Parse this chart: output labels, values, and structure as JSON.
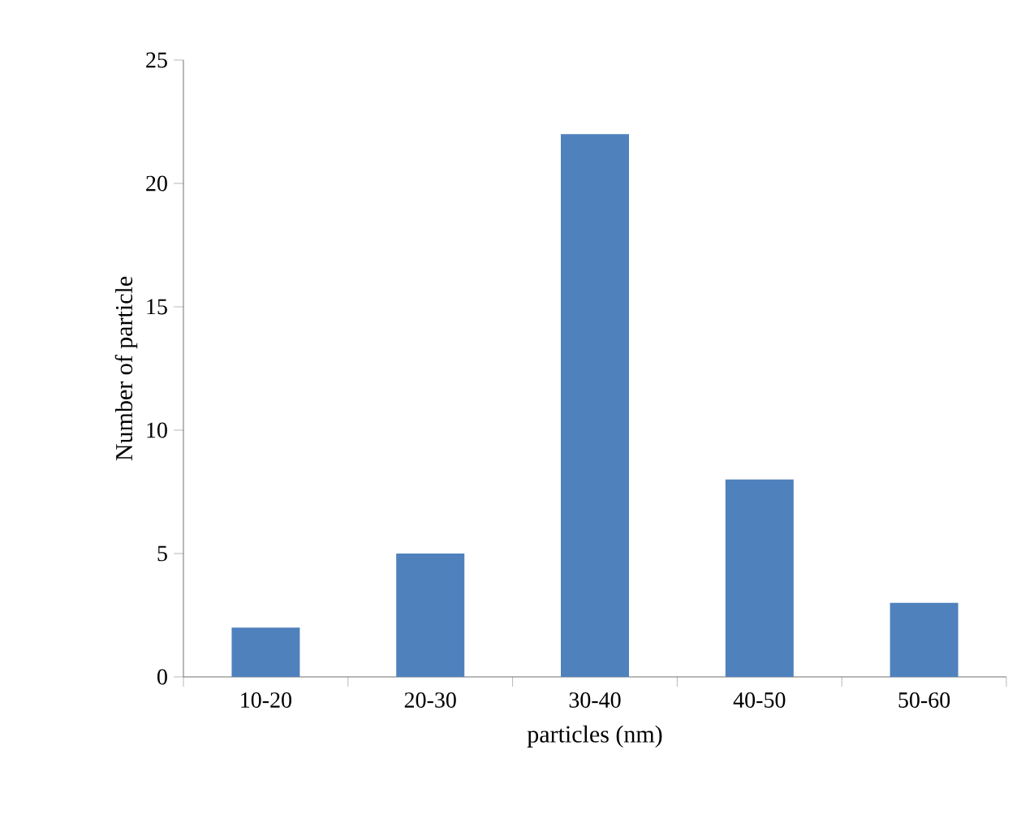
{
  "chart_data": {
    "type": "bar",
    "xlabel": "particles  (nm)",
    "ylabel": "Number of particle",
    "categories": [
      "10-20",
      "20-30",
      "30-40",
      "40-50",
      "50-60"
    ],
    "values": [
      2,
      5,
      22,
      8,
      3
    ],
    "color": "#4f81bd",
    "ylim": [
      0,
      25
    ],
    "yticks": [
      0,
      5,
      10,
      15,
      20,
      25
    ],
    "grid": false
  }
}
